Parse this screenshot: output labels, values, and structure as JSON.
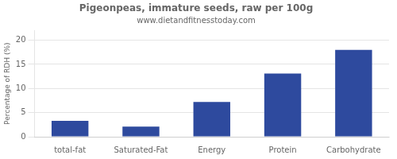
{
  "chart_data": {
    "type": "bar",
    "title": "Pigeonpeas, immature seeds, raw per 100g",
    "subtitle": "www.dietandfitnesstoday.com",
    "categories": [
      "total-fat",
      "Saturated-Fat",
      "Energy",
      "Protein",
      "Carbohydrate"
    ],
    "values": [
      3.3,
      2.1,
      7.2,
      13.1,
      18.0
    ],
    "color": "#2e4a9e",
    "ylabel": "Percentage of RDH (%)",
    "ylim": [
      0,
      22
    ],
    "yticks": [
      0,
      5,
      10,
      15,
      20
    ],
    "grid": true
  }
}
